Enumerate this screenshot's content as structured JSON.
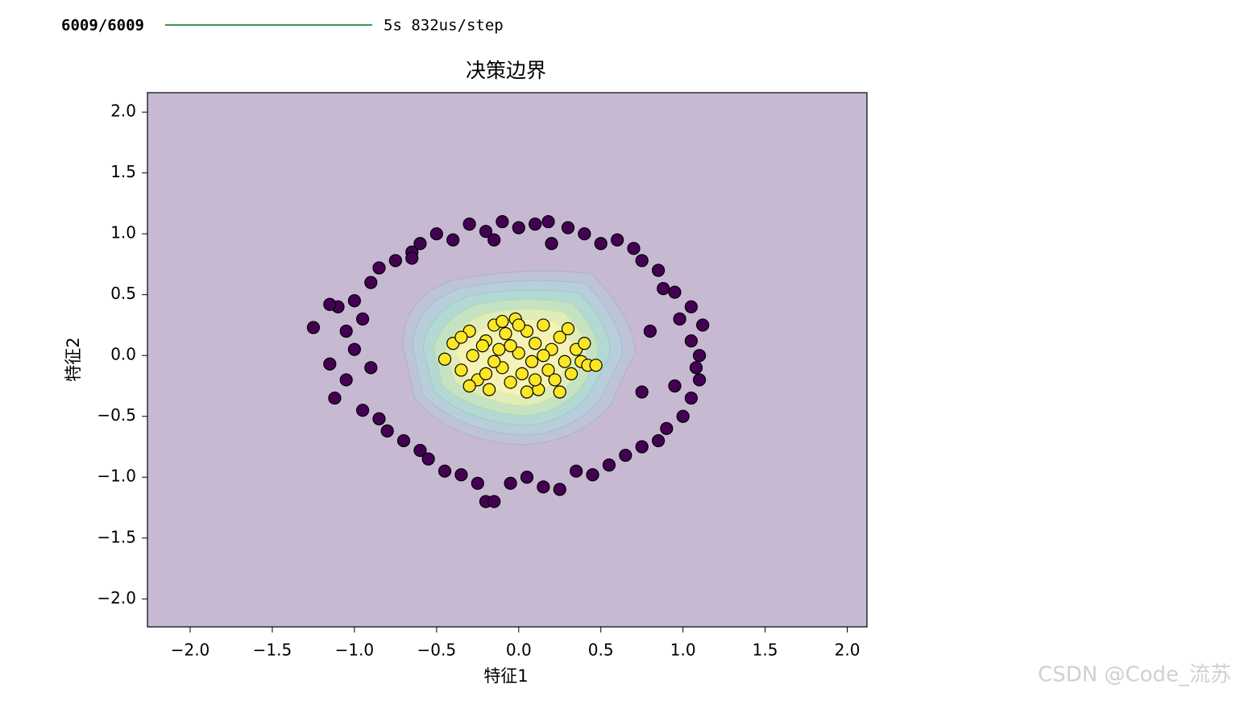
{
  "progress": {
    "steps": "6009/6009",
    "time": "5s 832us/step"
  },
  "watermark": "CSDN @Code_流苏",
  "chart_data": {
    "type": "scatter",
    "title": "决策边界",
    "xlabel": "特征1",
    "ylabel": "特征2",
    "xlim": [
      -2.26,
      2.12
    ],
    "ylim": [
      -2.23,
      2.16
    ],
    "xticks": [
      {
        "value": -2,
        "label": "−2.0"
      },
      {
        "value": -1.5,
        "label": "−1.5"
      },
      {
        "value": -1,
        "label": "−1.0"
      },
      {
        "value": -0.5,
        "label": "−0.5"
      },
      {
        "value": 0,
        "label": "0.0"
      },
      {
        "value": 0.5,
        "label": "0.5"
      },
      {
        "value": 1,
        "label": "1.0"
      },
      {
        "value": 1.5,
        "label": "1.5"
      },
      {
        "value": 2,
        "label": "2.0"
      }
    ],
    "yticks": [
      {
        "value": -2,
        "label": "−2.0"
      },
      {
        "value": -1.5,
        "label": "−1.5"
      },
      {
        "value": -1,
        "label": "−1.0"
      },
      {
        "value": -0.5,
        "label": "−0.5"
      },
      {
        "value": 0,
        "label": "0.0"
      },
      {
        "value": 0.5,
        "label": "0.5"
      },
      {
        "value": 1,
        "label": "1.0"
      },
      {
        "value": 1.5,
        "label": "1.5"
      },
      {
        "value": 2,
        "label": "2.0"
      }
    ],
    "series": [
      {
        "color": "#440154",
        "x": [
          1.1,
          1.05,
          1.12,
          0.98,
          1.05,
          0.95,
          0.88,
          0.85,
          0.75,
          0.7,
          0.6,
          0.5,
          0.4,
          0.3,
          0.18,
          0.1,
          0.0,
          -0.1,
          -0.2,
          -0.3,
          -0.4,
          -0.5,
          -0.6,
          -0.65,
          -0.75,
          -0.85,
          -0.9,
          -1.0,
          -1.1,
          -0.95,
          -1.25,
          -1.05,
          -1.0,
          -1.15,
          -0.9,
          -1.05,
          -1.12,
          -0.95,
          -0.85,
          -0.8,
          -0.7,
          -0.6,
          -0.55,
          -0.45,
          -0.35,
          -0.25,
          -0.2,
          -0.15,
          -0.05,
          0.05,
          0.15,
          0.25,
          0.35,
          0.45,
          0.55,
          0.65,
          0.75,
          0.85,
          0.9,
          1.0,
          1.05,
          0.95,
          1.1,
          1.08,
          0.75,
          0.8,
          -0.65,
          0.2,
          -0.15,
          -1.15
        ],
        "y": [
          0.0,
          0.12,
          0.25,
          0.3,
          0.4,
          0.52,
          0.55,
          0.7,
          0.78,
          0.88,
          0.95,
          0.92,
          1.0,
          1.05,
          1.1,
          1.08,
          1.05,
          1.1,
          1.02,
          1.08,
          0.95,
          1.0,
          0.92,
          0.85,
          0.78,
          0.72,
          0.6,
          0.45,
          0.4,
          0.3,
          0.23,
          0.2,
          0.05,
          -0.07,
          -0.1,
          -0.2,
          -0.35,
          -0.45,
          -0.52,
          -0.62,
          -0.7,
          -0.78,
          -0.85,
          -0.95,
          -0.98,
          -1.05,
          -1.2,
          -1.2,
          -1.05,
          -1.0,
          -1.08,
          -1.1,
          -0.95,
          -0.98,
          -0.9,
          -0.82,
          -0.75,
          -0.7,
          -0.6,
          -0.5,
          -0.35,
          -0.25,
          -0.2,
          -0.1,
          -0.3,
          0.2,
          0.8,
          0.92,
          0.95,
          0.42
        ]
      },
      {
        "color": "#fde725",
        "x": [
          -0.45,
          -0.4,
          -0.35,
          -0.3,
          -0.28,
          -0.25,
          -0.2,
          -0.18,
          -0.15,
          -0.12,
          -0.1,
          -0.08,
          -0.05,
          -0.02,
          0.0,
          0.02,
          0.05,
          0.08,
          0.1,
          0.12,
          0.15,
          0.18,
          0.2,
          0.22,
          0.25,
          0.28,
          0.3,
          0.32,
          0.35,
          0.38,
          0.4,
          0.42,
          0.47,
          -0.35,
          -0.22,
          -0.05,
          0.05,
          -0.15,
          0.15,
          -0.3,
          0.25,
          -0.1,
          0.0,
          0.1,
          -0.2
        ],
        "y": [
          -0.03,
          0.1,
          -0.12,
          0.2,
          0.0,
          -0.2,
          0.12,
          -0.28,
          0.25,
          0.05,
          -0.1,
          0.18,
          -0.22,
          0.3,
          0.02,
          -0.15,
          0.2,
          -0.05,
          0.1,
          -0.28,
          0.25,
          -0.12,
          0.05,
          -0.2,
          0.15,
          -0.05,
          0.22,
          -0.15,
          0.05,
          -0.05,
          0.1,
          -0.08,
          -0.08,
          0.15,
          0.08,
          0.08,
          -0.3,
          -0.05,
          0.0,
          -0.25,
          -0.3,
          0.28,
          0.25,
          -0.2,
          -0.15
        ]
      }
    ]
  }
}
